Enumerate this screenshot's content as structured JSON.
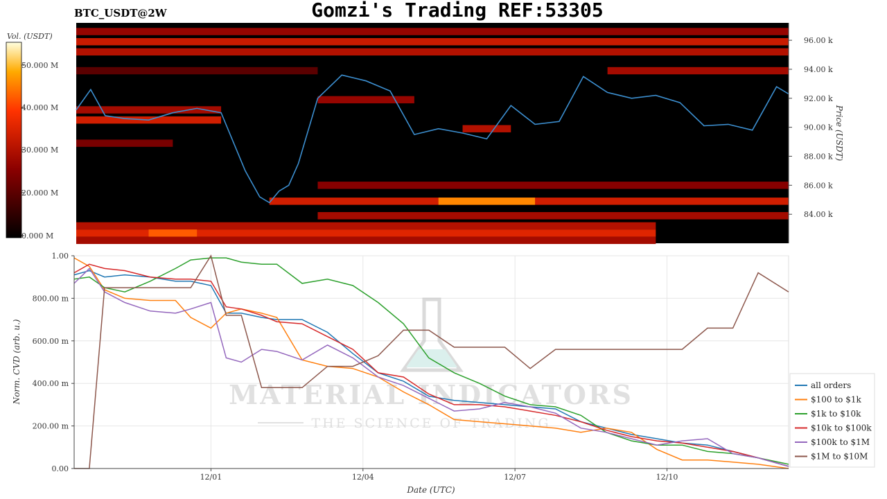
{
  "header": {
    "title": "Gomzi's Trading REF:53305",
    "pair": "BTC_USDT@2W"
  },
  "watermark": {
    "brand": "MATERIAL INDICATORS",
    "tagline": "THE SCIENCE OF TRADING",
    "color": "#cfcfcf",
    "flask_color": "#bfe5df"
  },
  "chart_data": [
    {
      "type": "heatmap",
      "name_id": "orderbook-heatmap",
      "colorbar": {
        "label": "Vol. (USDT)",
        "ticks": [
          "0.000 M",
          "20.000 M",
          "30.000 M",
          "40.000 M",
          "50.000 M"
        ],
        "range": [
          0,
          53
        ],
        "colormap": "black-red-yellow-white"
      },
      "y_axis": {
        "label": "Price (USDT)",
        "ticks": [
          "84.00 k",
          "86.00 k",
          "88.00 k",
          "90.00 k",
          "92.00 k",
          "94.00 k",
          "96.00 k"
        ],
        "tick_values": [
          84,
          86,
          88,
          90,
          92,
          94,
          96
        ],
        "range": [
          82,
          97.2
        ],
        "unit": "k USDT"
      },
      "x_range_days": [
        "11/28",
        "12/12 18:00"
      ],
      "liquidity_bands": [
        {
          "price": 96.6,
          "start": "11/28",
          "end": "12/12 18:00",
          "volume_m": 20
        },
        {
          "price": 95.9,
          "start": "11/28",
          "end": "12/12 18:00",
          "volume_m": 27
        },
        {
          "price": 95.2,
          "start": "11/28",
          "end": "12/12 18:00",
          "volume_m": 24
        },
        {
          "price": 93.9,
          "start": "11/28",
          "end": "12/03",
          "volume_m": 12
        },
        {
          "price": 93.9,
          "start": "12/09",
          "end": "12/12 18:00",
          "volume_m": 22
        },
        {
          "price": 91.9,
          "start": "12/03",
          "end": "12/05",
          "volume_m": 20
        },
        {
          "price": 91.2,
          "start": "11/28",
          "end": "12/01",
          "volume_m": 22
        },
        {
          "price": 90.5,
          "start": "11/28",
          "end": "12/01",
          "volume_m": 28
        },
        {
          "price": 89.9,
          "start": "12/06",
          "end": "12/07",
          "volume_m": 24
        },
        {
          "price": 88.9,
          "start": "11/28",
          "end": "11/30",
          "volume_m": 16
        },
        {
          "price": 86.0,
          "start": "12/03",
          "end": "12/12 18:00",
          "volume_m": 18
        },
        {
          "price": 84.9,
          "start": "12/02",
          "end": "12/12 18:00",
          "volume_m": 28
        },
        {
          "price": 84.9,
          "start": "12/05 12:00",
          "end": "12/07 12:00",
          "volume_m": 42
        },
        {
          "price": 83.9,
          "start": "12/03",
          "end": "12/12 18:00",
          "volume_m": 22
        },
        {
          "price": 83.2,
          "start": "11/28",
          "end": "12/10",
          "volume_m": 24
        },
        {
          "price": 82.7,
          "start": "11/28",
          "end": "12/10",
          "volume_m": 30
        },
        {
          "price": 82.7,
          "start": "11/29 12:00",
          "end": "11/30 12:00",
          "volume_m": 38
        },
        {
          "price": 82.2,
          "start": "11/28",
          "end": "12/10",
          "volume_m": 22
        }
      ],
      "price_series": {
        "color": "#3c8fd0",
        "x_days_from_start": [
          0,
          0.3,
          0.6,
          1.0,
          1.5,
          2.0,
          2.5,
          3.0,
          3.5,
          3.8,
          4.0,
          4.2,
          4.4,
          4.6,
          5.0,
          5.5,
          6.0,
          6.5,
          7.0,
          7.5,
          8.0,
          8.5,
          9.0,
          9.5,
          10.0,
          10.5,
          11.0,
          11.5,
          12.0,
          12.5,
          13.0,
          13.5,
          14.0,
          14.2,
          14.5,
          14.75
        ],
        "values_k": [
          91.2,
          92.6,
          90.8,
          90.6,
          90.5,
          91.0,
          91.3,
          91.0,
          87.0,
          85.2,
          84.8,
          85.6,
          86.0,
          87.5,
          92.0,
          93.6,
          93.2,
          92.5,
          89.5,
          89.9,
          89.6,
          89.2,
          91.5,
          90.2,
          90.4,
          93.5,
          92.4,
          92.0,
          92.2,
          91.7,
          90.1,
          90.2,
          89.8,
          91.0,
          92.8,
          92.3
        ]
      }
    },
    {
      "type": "line",
      "name_id": "cvd-chart",
      "title": "",
      "xlabel": "Date (UTC)",
      "ylabel": "Norm. CVD (arb. u.)",
      "ylim": [
        0,
        1
      ],
      "y_ticks": [
        "0.00",
        "200.00 m",
        "400.00 m",
        "600.00 m",
        "800.00 m",
        "1.00"
      ],
      "y_tick_values": [
        0,
        0.2,
        0.4,
        0.6,
        0.8,
        1.0
      ],
      "x_ticks": [
        "12/01",
        "12/04",
        "12/07",
        "12/10"
      ],
      "x_tick_days": [
        2.7,
        5.7,
        8.7,
        11.7
      ],
      "x_range_days": [
        0,
        14.1
      ],
      "grid": true,
      "legend_position": "right",
      "x_days": [
        0,
        0.3,
        0.6,
        1,
        1.5,
        2,
        2.3,
        2.7,
        3,
        3.3,
        3.7,
        4,
        4.5,
        5,
        5.5,
        6,
        6.5,
        7,
        7.5,
        8,
        8.5,
        9,
        9.5,
        10,
        10.5,
        11,
        11.5,
        12,
        12.5,
        13,
        13.5,
        14.1
      ],
      "series": [
        {
          "name": "all orders",
          "color": "#1f77b4",
          "values": [
            0.91,
            0.93,
            0.9,
            0.91,
            0.9,
            0.88,
            0.88,
            0.86,
            0.73,
            0.73,
            0.71,
            0.7,
            0.7,
            0.64,
            0.54,
            0.45,
            0.41,
            0.34,
            0.32,
            0.31,
            0.3,
            0.29,
            0.28,
            0.22,
            0.19,
            0.16,
            0.14,
            0.12,
            0.11,
            0.08,
            0.05,
            0.01
          ]
        },
        {
          "name": "$100 to $1k",
          "color": "#ff7f0e",
          "values": [
            0.99,
            0.95,
            0.84,
            0.8,
            0.79,
            0.79,
            0.71,
            0.66,
            0.73,
            0.75,
            0.73,
            0.71,
            0.51,
            0.48,
            0.47,
            0.43,
            0.36,
            0.3,
            0.23,
            0.22,
            0.21,
            0.2,
            0.19,
            0.17,
            0.19,
            0.17,
            0.09,
            0.04,
            0.04,
            0.03,
            0.02,
            0.0
          ]
        },
        {
          "name": "$1k to $10k",
          "color": "#2ca02c",
          "values": [
            0.89,
            0.9,
            0.85,
            0.83,
            0.88,
            0.94,
            0.98,
            0.99,
            0.99,
            0.97,
            0.96,
            0.96,
            0.87,
            0.89,
            0.86,
            0.78,
            0.68,
            0.52,
            0.45,
            0.4,
            0.34,
            0.3,
            0.29,
            0.25,
            0.17,
            0.13,
            0.11,
            0.11,
            0.08,
            0.07,
            0.05,
            0.02
          ]
        },
        {
          "name": "$10k to $100k",
          "color": "#d62728",
          "values": [
            0.92,
            0.96,
            0.94,
            0.93,
            0.9,
            0.89,
            0.89,
            0.88,
            0.76,
            0.75,
            0.72,
            0.69,
            0.68,
            0.62,
            0.56,
            0.45,
            0.43,
            0.35,
            0.3,
            0.3,
            0.29,
            0.27,
            0.25,
            0.22,
            0.18,
            0.15,
            0.13,
            0.12,
            0.1,
            0.08,
            0.05,
            0.01
          ]
        },
        {
          "name": "$100k to $1M",
          "color": "#9467bd",
          "values": [
            0.87,
            0.94,
            0.83,
            0.78,
            0.74,
            0.73,
            0.75,
            0.78,
            0.52,
            0.5,
            0.56,
            0.55,
            0.51,
            0.58,
            0.52,
            0.43,
            0.39,
            0.33,
            0.27,
            0.28,
            0.31,
            0.29,
            0.26,
            0.19,
            0.17,
            0.14,
            0.11,
            0.13,
            0.14,
            0.07,
            0.05,
            0.01
          ]
        },
        {
          "name": "$1M to $10M",
          "color": "#8c564b",
          "values": [
            0.0,
            0.0,
            0.85,
            0.85,
            0.85,
            0.85,
            0.85,
            1.0,
            0.72,
            0.72,
            0.38,
            0.38,
            0.38,
            0.48,
            0.48,
            0.53,
            0.65,
            0.65,
            0.57,
            0.57,
            0.57,
            0.47,
            0.56,
            0.56,
            0.56,
            0.56,
            0.56,
            0.56,
            0.66,
            0.66,
            0.92,
            0.83
          ]
        }
      ]
    }
  ]
}
